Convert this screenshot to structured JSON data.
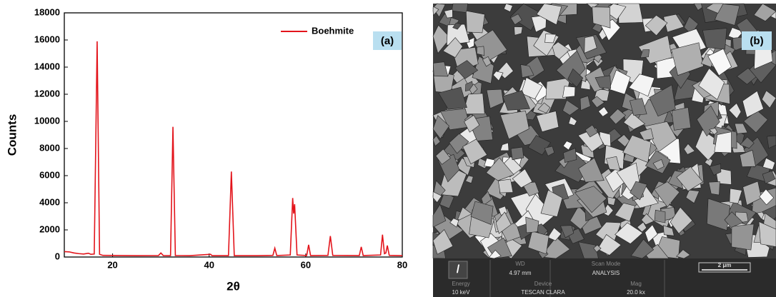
{
  "chart_data": {
    "type": "line",
    "x_label": "2θ",
    "y_label": "Counts",
    "annotation": "(a)",
    "xlim": [
      10,
      80
    ],
    "xticks": [
      20,
      40,
      60,
      80
    ],
    "ylim": [
      0,
      18000
    ],
    "yticks": [
      0,
      2000,
      4000,
      6000,
      8000,
      10000,
      12000,
      14000,
      16000,
      18000
    ],
    "legend": "upper right",
    "grid": false,
    "series": [
      {
        "name": "Boehmite",
        "color": "#e3141b",
        "x": [
          10,
          11,
          12,
          13,
          14,
          15,
          15.5,
          16.2,
          16.8,
          17.3,
          18,
          25,
          29.5,
          30,
          30.5,
          32,
          32.5,
          33,
          36,
          40.3,
          40.6,
          44,
          44.6,
          45.2,
          50,
          53.2,
          53.6,
          54,
          56.8,
          57.3,
          57.5,
          57.7,
          58.2,
          60.2,
          60.6,
          61,
          64.6,
          65.1,
          65.6,
          71.1,
          71.5,
          71.9,
          75.5,
          75.9,
          76.3,
          76.6,
          76.9,
          77.3,
          80
        ],
        "values": [
          400,
          380,
          300,
          250,
          220,
          280,
          200,
          220,
          15900,
          200,
          120,
          100,
          110,
          300,
          110,
          100,
          9600,
          110,
          100,
          200,
          100,
          100,
          6300,
          100,
          100,
          120,
          650,
          110,
          150,
          4350,
          3200,
          3900,
          150,
          110,
          900,
          110,
          120,
          1550,
          120,
          110,
          750,
          110,
          150,
          1650,
          250,
          300,
          850,
          120,
          100
        ]
      }
    ]
  },
  "sem_panel": {
    "label": "(b)",
    "scale_bar": "2 μm",
    "info": [
      {
        "label": "WD",
        "value": "4.97 mm"
      },
      {
        "label": "Scan Mode",
        "value": "ANALYSIS"
      },
      {
        "label": "Energy",
        "value": "10 keV"
      },
      {
        "label": "Device",
        "value": "TESCAN CLARA"
      },
      {
        "label": "Mag",
        "value": "20.0 kx"
      }
    ]
  }
}
